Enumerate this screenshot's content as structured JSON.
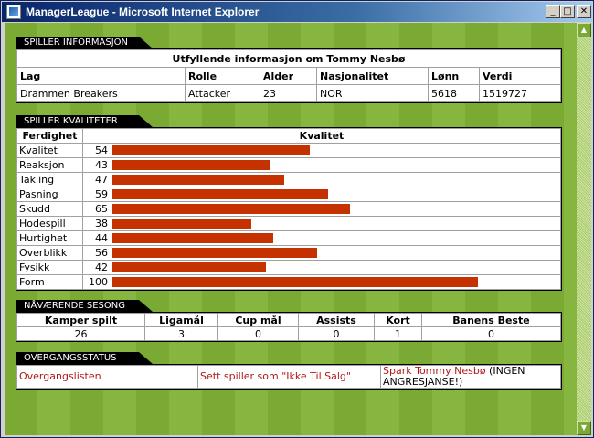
{
  "window": {
    "title": "ManagerLeague - Microsoft Internet Explorer",
    "min_glyph": "_",
    "max_glyph": "□",
    "close_glyph": "✕"
  },
  "player_info": {
    "section_label": "SPILLER INFORMASJON",
    "caption": "Utfyllende informasjon om Tommy Nesbø",
    "headers": [
      "Lag",
      "Rolle",
      "Alder",
      "Nasjonalitet",
      "Lønn",
      "Verdi"
    ],
    "values": [
      "Drammen Breakers",
      "Attacker",
      "23",
      "NOR",
      "5618",
      "1519727"
    ]
  },
  "qualities": {
    "section_label": "SPILLER KVALITETER",
    "col_skill": "Ferdighet",
    "col_quality": "Kvalitet",
    "max": 100,
    "bar_color": "#c63100",
    "rows": [
      {
        "name": "Kvalitet",
        "value": 54
      },
      {
        "name": "Reaksjon",
        "value": 43
      },
      {
        "name": "Takling",
        "value": 47
      },
      {
        "name": "Pasning",
        "value": 59
      },
      {
        "name": "Skudd",
        "value": 65
      },
      {
        "name": "Hodespill",
        "value": 38
      },
      {
        "name": "Hurtighet",
        "value": 44
      },
      {
        "name": "Overblikk",
        "value": 56
      },
      {
        "name": "Fysikk",
        "value": 42
      },
      {
        "name": "Form",
        "value": 100
      }
    ]
  },
  "season": {
    "section_label": "NÅVÆRENDE SESONG",
    "headers": [
      "Kamper spilt",
      "Ligamål",
      "Cup mål",
      "Assists",
      "Kort",
      "Banens Beste"
    ],
    "values": [
      "26",
      "3",
      "0",
      "0",
      "1",
      "0"
    ]
  },
  "transfer": {
    "section_label": "OVERGANGSSTATUS",
    "link_list": "Overgangslisten",
    "link_not_for_sale": "Sett spiller som \"Ikke Til Salg\"",
    "link_fire": "Spark Tommy Nesbø",
    "fire_note": " (INGEN ANGRESJANSE!)"
  },
  "colors": {
    "title_bar": "#0a246a",
    "pitch_green": "#7aaa34",
    "link_red": "#b01818"
  }
}
